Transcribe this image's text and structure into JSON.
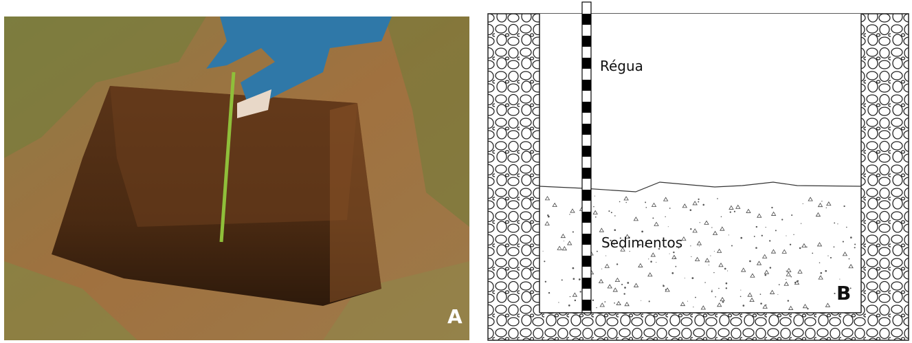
{
  "panels": [
    {
      "letter": "A"
    },
    {
      "letter": "B",
      "labels": [
        "Régua",
        "Sedimentos"
      ]
    }
  ]
}
